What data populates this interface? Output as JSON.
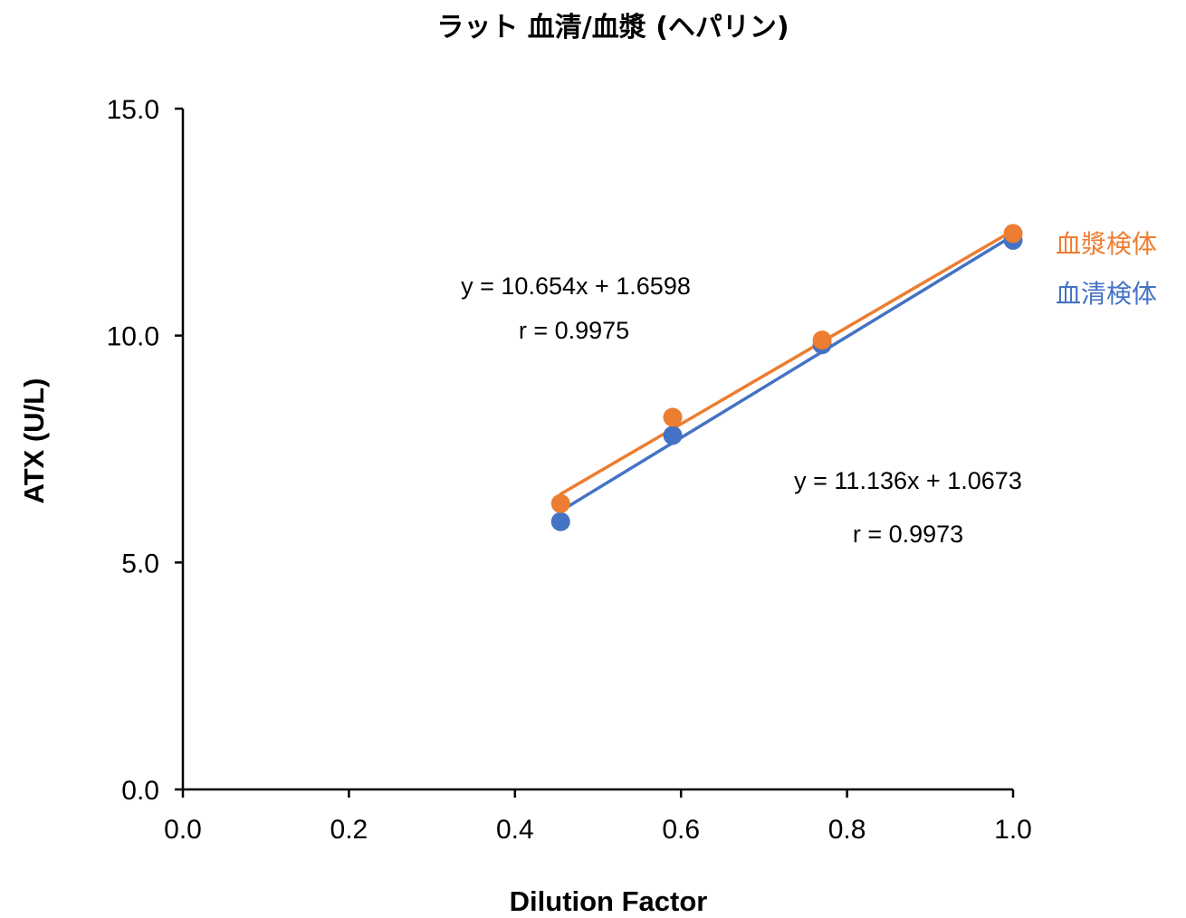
{
  "chart_data": {
    "type": "scatter",
    "title": "ラット 血清/血漿 (ヘパリン)",
    "xlabel": "Dilution Factor",
    "ylabel": "ATX (U/L)",
    "xlim": [
      0.0,
      1.0
    ],
    "ylim": [
      0.0,
      15.0
    ],
    "x_ticks": [
      "0.0",
      "0.2",
      "0.4",
      "0.6",
      "0.8",
      "1.0"
    ],
    "y_ticks": [
      "0.0",
      "5.0",
      "10.0",
      "15.0"
    ],
    "grid": false,
    "series": [
      {
        "name": "血漿検体",
        "color": "#ED7D31",
        "x": [
          0.455,
          0.59,
          0.77,
          1.0
        ],
        "y": [
          6.3,
          8.2,
          9.9,
          12.25
        ],
        "trendline": {
          "slope": 10.654,
          "intercept": 1.6598
        },
        "equation": "y = 10.654x + 1.6598",
        "r_label": "r = 0.9975"
      },
      {
        "name": "血清検体",
        "color": "#4472C4",
        "x": [
          0.455,
          0.59,
          0.77,
          1.0
        ],
        "y": [
          5.9,
          7.8,
          9.8,
          12.1
        ],
        "trendline": {
          "slope": 11.136,
          "intercept": 1.0673
        },
        "equation": "y = 11.136x + 1.0673",
        "r_label": "r = 0.9973"
      }
    ]
  }
}
